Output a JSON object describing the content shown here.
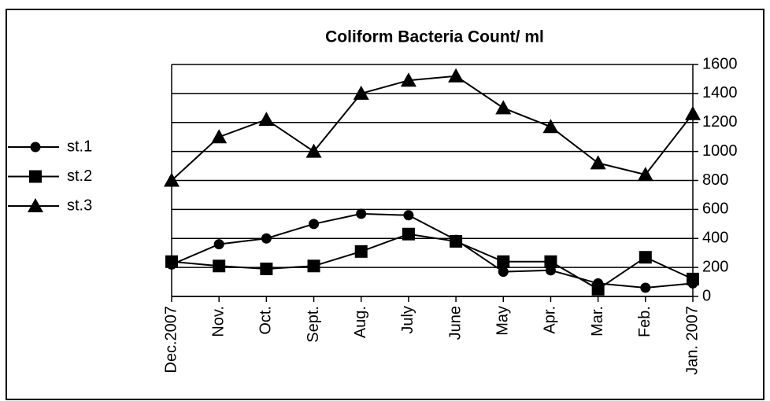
{
  "chart_data": {
    "type": "line",
    "title": "Coliform Bacteria Count/ ml",
    "categories": [
      "Dec.2007",
      "Nov.",
      "Oct.",
      "Sept.",
      "Aug.",
      "July",
      "June",
      "May",
      "Apr.",
      "Mar.",
      "Feb.",
      "Jan. 2007"
    ],
    "series": [
      {
        "name": "st.1",
        "color": "#000000",
        "marker": "circle",
        "values": [
          220,
          360,
          400,
          500,
          570,
          560,
          390,
          170,
          180,
          90,
          60,
          90
        ]
      },
      {
        "name": "st.2",
        "color": "#000000",
        "marker": "square",
        "values": [
          240,
          210,
          190,
          210,
          310,
          430,
          380,
          240,
          240,
          50,
          270,
          120
        ]
      },
      {
        "name": "st.3",
        "color": "#000000",
        "marker": "triangle",
        "values": [
          800,
          1100,
          1220,
          1000,
          1400,
          1490,
          1520,
          1300,
          1170,
          920,
          840,
          1260
        ]
      }
    ],
    "ylim": [
      0,
      1600
    ],
    "yticks": [
      0,
      200,
      400,
      600,
      800,
      1000,
      1200,
      1400,
      1600
    ],
    "grid": true,
    "y_axis_side": "right",
    "legend": "left"
  }
}
